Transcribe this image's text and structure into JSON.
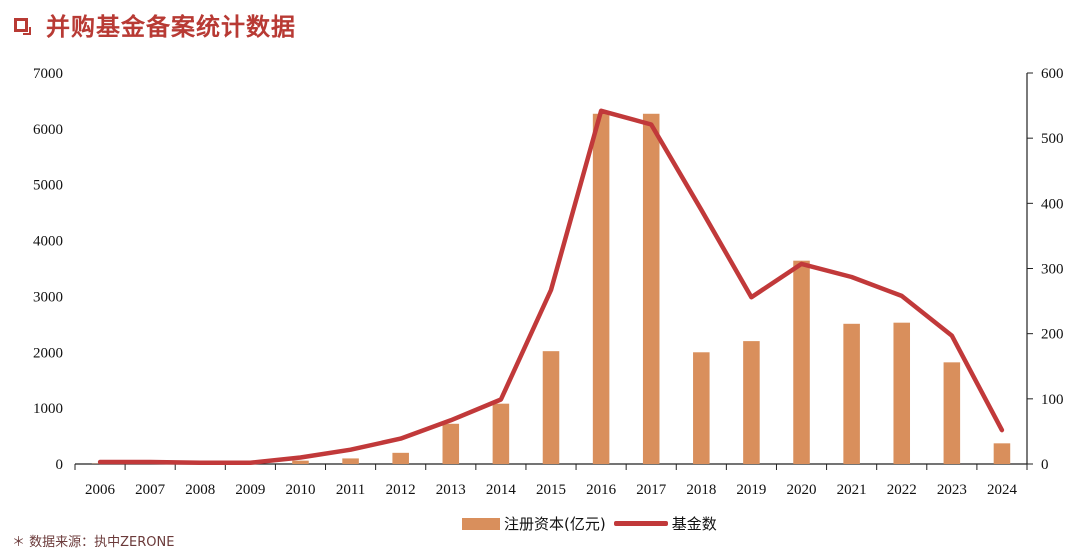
{
  "header": {
    "title": "并购基金备案统计数据"
  },
  "source": {
    "text": "＊ 数据来源：执中ZERONE"
  },
  "colors": {
    "bar": "#d98f5c",
    "line": "#c1393a",
    "title": "#b83a34"
  },
  "chart_data": {
    "type": "bar+line",
    "title": "",
    "categories": [
      "2006",
      "2007",
      "2008",
      "2009",
      "2010",
      "2011",
      "2012",
      "2013",
      "2014",
      "2015",
      "2016",
      "2017",
      "2018",
      "2019",
      "2020",
      "2021",
      "2022",
      "2023",
      "2024"
    ],
    "series": [
      {
        "name": "注册资本(亿元)",
        "type": "bar",
        "axis": "left",
        "values": [
          5,
          10,
          15,
          20,
          60,
          100,
          200,
          720,
          1080,
          2020,
          6270,
          6270,
          2000,
          2200,
          3640,
          2510,
          2530,
          1820,
          370
        ]
      },
      {
        "name": "基金数",
        "type": "line",
        "axis": "right",
        "values": [
          3,
          3,
          2,
          2,
          10,
          22,
          39,
          67,
          99,
          267,
          542,
          521,
          390,
          256,
          307,
          287,
          258,
          197,
          52
        ]
      }
    ],
    "left_axis": {
      "ylim": [
        0,
        7000
      ],
      "ticks": [
        "0",
        "1000",
        "2000",
        "3000",
        "4000",
        "5000",
        "6000",
        "7000"
      ]
    },
    "right_axis": {
      "ylim": [
        0,
        600
      ],
      "ticks": [
        "0",
        "100",
        "200",
        "300",
        "400",
        "500",
        "600"
      ]
    },
    "grid": false,
    "legend": "bottom-center"
  }
}
